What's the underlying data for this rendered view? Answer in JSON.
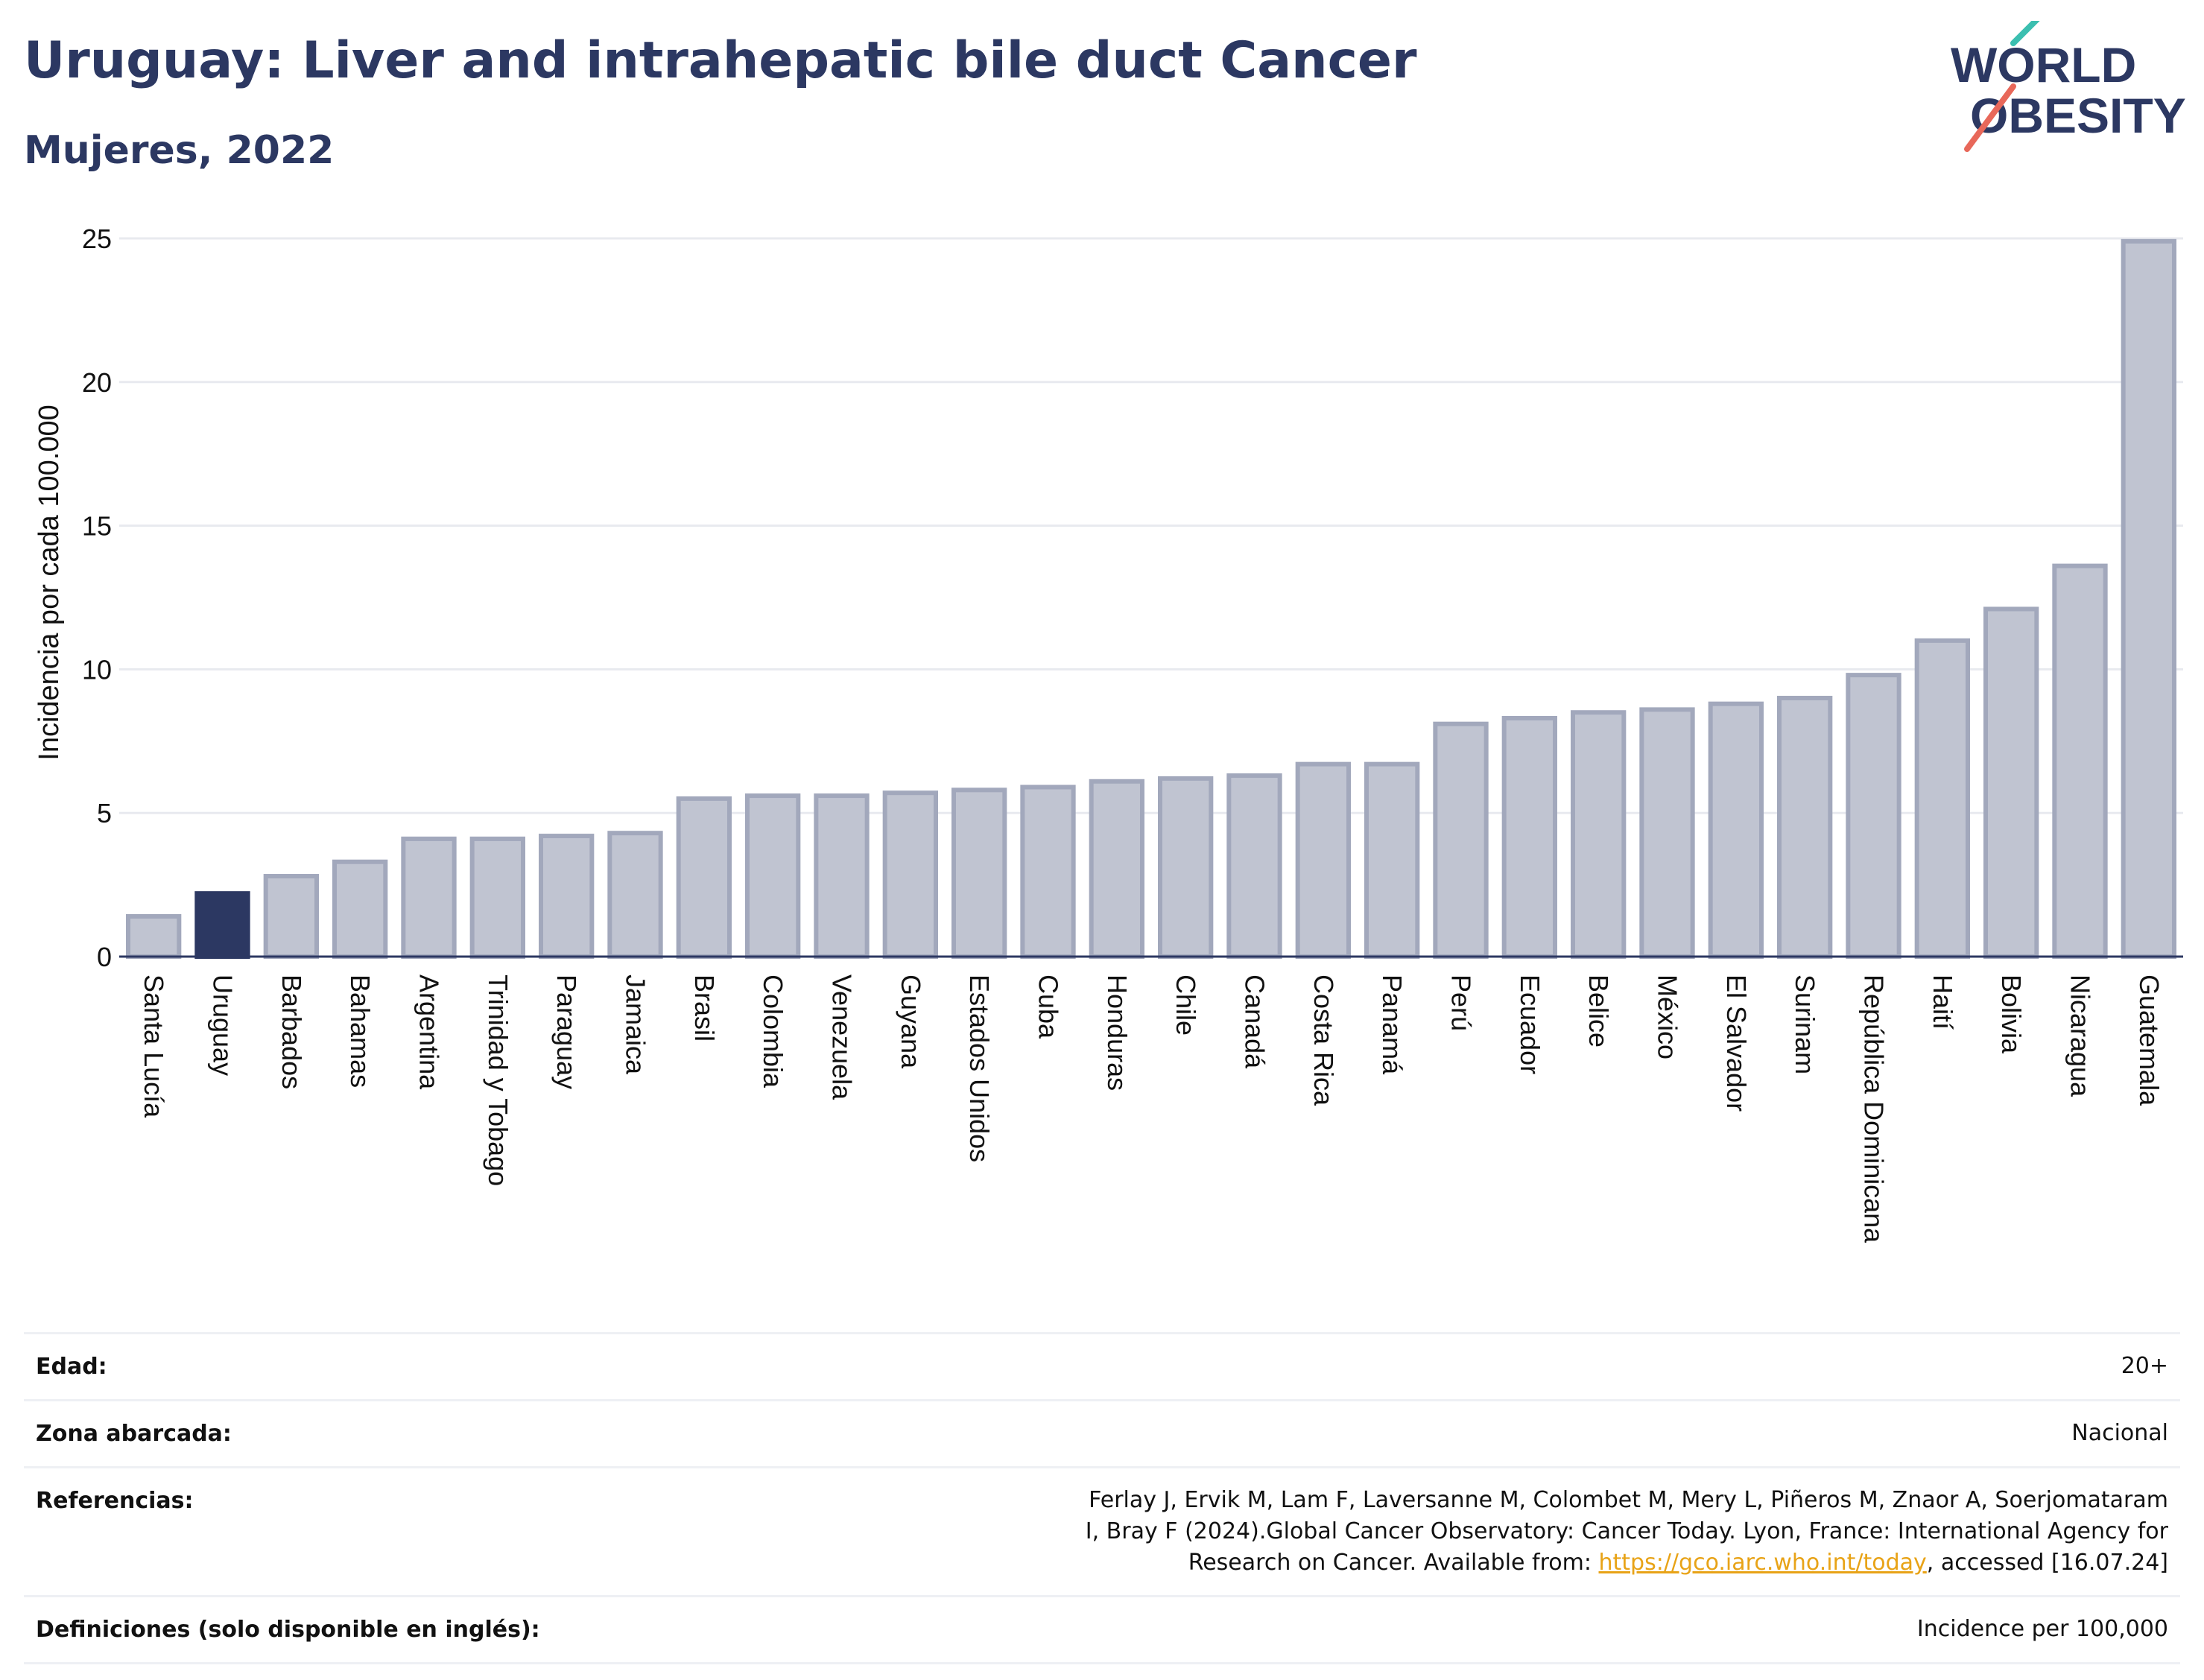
{
  "header": {
    "title": "Uruguay: Liver and intrahepatic bile duct Cancer",
    "subtitle": "Mujeres, 2022"
  },
  "logo": {
    "line1": "WORLD",
    "line2": "OBESITY",
    "accent_teal": "#3bbfb0",
    "accent_coral": "#e8685a"
  },
  "colors": {
    "bar_default": "#c0c4d1",
    "bar_default_border": "#a2a8bc",
    "bar_highlight": "#2c3862",
    "text_dark": "#2c3862",
    "grid": "#e8eaef"
  },
  "chart_data": {
    "type": "bar",
    "ylabel": "Incidencia por cada 100.000",
    "xlabel": "",
    "ylim": [
      0,
      25
    ],
    "yticks": [
      0,
      5,
      10,
      15,
      20,
      25
    ],
    "grid": true,
    "highlight": "Uruguay",
    "categories": [
      "Santa Lucía",
      "Uruguay",
      "Barbados",
      "Bahamas",
      "Argentina",
      "Trinidad y Tobago",
      "Paraguay",
      "Jamaica",
      "Brasil",
      "Colombia",
      "Venezuela",
      "Guyana",
      "Estados Unidos",
      "Cuba",
      "Honduras",
      "Chile",
      "Canadá",
      "Costa Rica",
      "Panamá",
      "Perú",
      "Ecuador",
      "Belice",
      "México",
      "El Salvador",
      "Surinam",
      "República Dominicana",
      "Haití",
      "Bolivia",
      "Nicaragua",
      "Guatemala"
    ],
    "values": [
      1.4,
      2.2,
      2.8,
      3.3,
      4.1,
      4.1,
      4.2,
      4.3,
      5.5,
      5.6,
      5.6,
      5.7,
      5.8,
      5.9,
      6.1,
      6.2,
      6.3,
      6.7,
      6.7,
      8.1,
      8.3,
      8.5,
      8.6,
      8.8,
      9.0,
      9.8,
      11.0,
      12.1,
      13.6,
      24.9
    ]
  },
  "meta": [
    {
      "label": "Edad:",
      "value": "20+"
    },
    {
      "label": "Zona abarcada:",
      "value": "Nacional"
    },
    {
      "label": "Referencias:",
      "value": "Ferlay J, Ervik M, Lam F, Laversanne M, Colombet M, Mery L, Piñeros M, Znaor A, Soerjomataram I, Bray F (2024).Global Cancer Observatory: Cancer Today. Lyon, France: International Agency for Research on Cancer. Available from: ",
      "link": "https://gco.iarc.who.int/today",
      "suffix": ", accessed [16.07.24]"
    },
    {
      "label": "Definiciones (solo disponible en inglés):",
      "value": "Incidence per 100,000"
    }
  ]
}
